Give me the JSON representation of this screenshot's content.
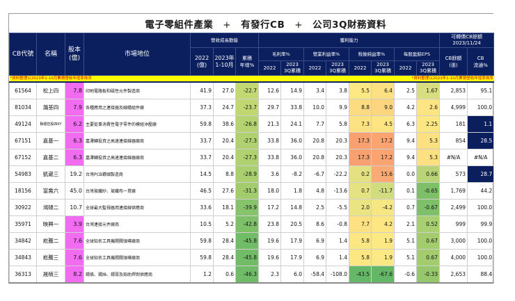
{
  "title": {
    "part1": "電子零組件產業",
    "plus1": "+",
    "part2": "有發行CB",
    "plus2": "+",
    "part3": "公司3Q財務資料"
  },
  "headers": {
    "cb_code": "CB代號",
    "name": "名稱",
    "capital": "股本\n(億)",
    "capital_line1": "股本",
    "capital_line2": "(億)",
    "market_position": "市場地位",
    "revenue_group": "營收成長動能",
    "rev_2022_l1": "2022",
    "rev_2022_l2": "(億)",
    "rev_2023_l1": "2023年",
    "rev_2023_l2": "1-10月",
    "rev_yoy_l1": "累積",
    "rev_yoy_l2": "年增%",
    "profit_group": "獲利能力",
    "gross_margin": "毛利率%",
    "op_margin": "營業利益率%",
    "net_margin": "稅後純益率%",
    "eps": "每股盈餘EPS",
    "yr_2022": "2022",
    "yr_2023_l1": "2023",
    "yr_2023_l2": "3Q累積",
    "cb_group_l1": "可轉債CB餘額",
    "cb_group_l2": "2023/11/24",
    "cb_balance_l1": "CB餘額",
    "cb_balance_l2": "(張)",
    "cb_float_l1": "CB",
    "cb_float_l2": "流通%"
  },
  "note": {
    "left": "*資料整理以2023年1-10月累積營收年增率排序",
    "right": "*資料整理以2023年1-10月累積營收年增率排序"
  },
  "colors": {
    "header_bg": "#0b1f5e",
    "note_bg": "#ffff00",
    "note_text": "#d00000",
    "capital_highlight": "#f26cf2"
  },
  "rows": [
    {
      "code": "61564",
      "name": "松上四",
      "capital": "7.8",
      "capital_hl": true,
      "position": "印刷電路板和磁性元件製造商",
      "rev2022": "41.9",
      "rev2023": "27.0",
      "rev_yoy": "-22.7",
      "gm2022": "12.6",
      "gm2023": "14.9",
      "om2022": "3.4",
      "om2023": "3.8",
      "nm2022": "5.5",
      "nm2023": "6.4",
      "eps2022": "2.5",
      "eps2023": "1.67",
      "cb_balance": "2,853",
      "cb_float": "95.1",
      "float_hl": false
    },
    {
      "code": "81034",
      "name": "瀚荃四",
      "capital": "7.9",
      "capital_hl": true,
      "position": "各種應用之連接器及線纜組件廠",
      "rev2022": "37.3",
      "rev2023": "24.7",
      "rev_yoy": "-23.7",
      "gm2022": "29.7",
      "gm2023": "33.8",
      "om2022": "10.0",
      "om2023": "9.9",
      "nm2022": "8.8",
      "nm2023": "9.0",
      "eps2022": "4.2",
      "eps2023": "2.6",
      "cb_balance": "4,999",
      "cb_float": "100.0",
      "float_hl": false
    },
    {
      "code": "49124",
      "name": "聯穩控股四KY",
      "capital": "6.2",
      "capital_hl": true,
      "position": "主要從事消費性電子零件的模組沖壓廠",
      "rev2022": "59.8",
      "rev2023": "38.6",
      "rev_yoy": "-26.8",
      "gm2022": "21.3",
      "gm2023": "24.1",
      "om2022": "7.7",
      "om2023": "5.8",
      "nm2022": "7.3",
      "nm2023": "4.5",
      "eps2022": "6.3",
      "eps2023": "2.25",
      "cb_balance": "181",
      "cb_float": "1.1",
      "float_hl": true
    },
    {
      "code": "67151",
      "name": "嘉基一",
      "capital": "6.3",
      "capital_hl": true,
      "position": "嘉澤轉投資之高速連接線器廠商",
      "rev2022": "33.7",
      "rev2023": "20.4",
      "rev_yoy": "-27.3",
      "gm2022": "33.8",
      "gm2023": "36.0",
      "om2022": "20.8",
      "om2023": "20.3",
      "nm2022": "17.3",
      "nm2023": "17.2",
      "eps2022": "9.4",
      "eps2023": "5.3",
      "cb_balance": "854",
      "cb_float": "28.5",
      "float_hl": true
    },
    {
      "code": "67152",
      "name": "嘉基二",
      "capital": "6.3",
      "capital_hl": true,
      "position": "嘉澤轉投資之高速連接線器廠商",
      "rev2022": "33.7",
      "rev2023": "20.4",
      "rev_yoy": "-27.3",
      "gm2022": "33.8",
      "gm2023": "36.0",
      "om2022": "20.8",
      "om2023": "20.3",
      "nm2022": "17.3",
      "nm2023": "17.2",
      "eps2022": "9.4",
      "eps2023": "5.3",
      "cb_balance": "#N/A",
      "cb_float": "#N/A",
      "float_hl": false
    },
    {
      "code": "54983",
      "name": "凱崴三",
      "capital": "19.2",
      "capital_hl": false,
      "position": "台灣PCB鑽頭製造商",
      "rev2022": "14.5",
      "rev2023": "8.8",
      "rev_yoy": "-28.9",
      "gm2022": "3.6",
      "gm2023": "-8.2",
      "om2022": "-6.7",
      "om2023": "-22.2",
      "nm2022": "0.2",
      "nm2023": "15.6",
      "eps2022": "0.0",
      "eps2023": "0.66",
      "cb_balance": "573",
      "cb_float": "28.7",
      "float_hl": true
    },
    {
      "code": "18156",
      "name": "富喬六",
      "capital": "45.0",
      "capital_hl": false,
      "position": "台灣玻纖紗、玻纖布一貫廠",
      "rev2022": "46.5",
      "rev2023": "27.6",
      "rev_yoy": "-31.3",
      "gm2022": "18.0",
      "gm2023": "1.8",
      "om2022": "4.8",
      "om2023": "-13.6",
      "nm2022": "0.7",
      "nm2023": "-11.7",
      "eps2022": "0.1",
      "eps2023": "-0.65",
      "cb_balance": "1,769",
      "cb_float": "44.2",
      "float_hl": false
    },
    {
      "code": "30922",
      "name": "鴻碩二",
      "capital": "10.7",
      "capital_hl": false,
      "position": "全球最大監視器用連接線供應商",
      "rev2022": "33.6",
      "rev2023": "18.1",
      "rev_yoy": "-39.9",
      "gm2022": "17.2",
      "gm2023": "14.8",
      "om2022": "2.5",
      "om2023": "-5.5",
      "nm2022": "2.0",
      "nm2023": "-4.2",
      "eps2022": "0.7",
      "eps2023": "-0.67",
      "cb_balance": "2,499",
      "cb_float": "100.0",
      "float_hl": false
    },
    {
      "code": "35971",
      "name": "映興一",
      "capital": "3.9",
      "capital_hl": true,
      "position": "台灣連接元件廠商",
      "rev2022": "10.5",
      "rev2023": "5.2",
      "rev_yoy": "-42.8",
      "gm2022": "23.8",
      "gm2023": "20.5",
      "om2022": "8.6",
      "om2023": "-0.8",
      "nm2022": "7.7",
      "nm2023": "4.2",
      "eps2022": "2.1",
      "eps2023": "0.52",
      "cb_balance": "999",
      "cb_float": "99.9",
      "float_hl": false
    },
    {
      "code": "34842",
      "name": "崧騰二",
      "capital": "7.6",
      "capital_hl": true,
      "position": "全球知名工具機開關領導廠商",
      "rev2022": "59.8",
      "rev2023": "28.4",
      "rev_yoy": "-45.8",
      "gm2022": "19.6",
      "gm2023": "17.9",
      "om2022": "6.9",
      "om2023": "1.4",
      "nm2022": "5.8",
      "nm2023": "1.9",
      "eps2022": "5.1",
      "eps2023": "0.67",
      "cb_balance": "3,000",
      "cb_float": "100.0",
      "float_hl": false
    },
    {
      "code": "34843",
      "name": "崧騰三",
      "capital": "7.6",
      "capital_hl": true,
      "position": "全球知名工具機開關領導廠商",
      "rev2022": "59.8",
      "rev2023": "28.4",
      "rev_yoy": "-45.8",
      "gm2022": "19.6",
      "gm2023": "17.9",
      "om2022": "6.9",
      "om2023": "1.4",
      "nm2022": "5.8",
      "nm2023": "1.9",
      "eps2022": "5.1",
      "eps2023": "0.67",
      "cb_balance": "4,000",
      "cb_float": "100.0",
      "float_hl": false
    },
    {
      "code": "36313",
      "name": "晟楠三",
      "capital": "8.2",
      "capital_hl": true,
      "position": "錫條、錫絲、錫膏及鉛助焊劑供應商",
      "rev2022": "1.2",
      "rev2023": "0.6",
      "rev_yoy": "-46.3",
      "gm2022": "2.3",
      "gm2023": "6.0",
      "om2022": "-58.4",
      "om2023": "-108.0",
      "nm2022": "-43.5",
      "nm2023": "-67.6",
      "eps2022": "-0.6",
      "eps2023": "-0.33",
      "cb_balance": "2,653",
      "cb_float": "88.4",
      "float_hl": false
    }
  ],
  "heatmap_colors": {
    "rev_yoy": [
      "#c2d873",
      "#c0d772",
      "#b5d370",
      "#b0d16f",
      "#b0d16f",
      "#a9cf6e",
      "#a3cc6c",
      "#86c36a",
      "#7dc068",
      "#71bc67",
      "#71bc67",
      "#6fbb67"
    ],
    "nm2022": [
      "#fde883",
      "#fddb80",
      "#fde282",
      "#f9a070",
      "#f9a070",
      "#e3e182",
      "#e5e282",
      "#eae483",
      "#fde183",
      "#fde783",
      "#fde783",
      "#64b867"
    ],
    "nm2023": [
      "#fde081",
      "#fdd57f",
      "#fee582",
      "#fba472",
      "#fba472",
      "#faaa74",
      "#d1dc7f",
      "#f7e784",
      "#fee683",
      "#fce985",
      "#fce985",
      "#63b767"
    ],
    "eps2023": [
      "#d8dd7f",
      "#fee583",
      "#fde783",
      "#fde081",
      "#fde081",
      "#b9d476",
      "#7dc068",
      "#7ec069",
      "#a8cf70",
      "#a3cc6f",
      "#a3cc6f",
      "#96c76d"
    ]
  }
}
